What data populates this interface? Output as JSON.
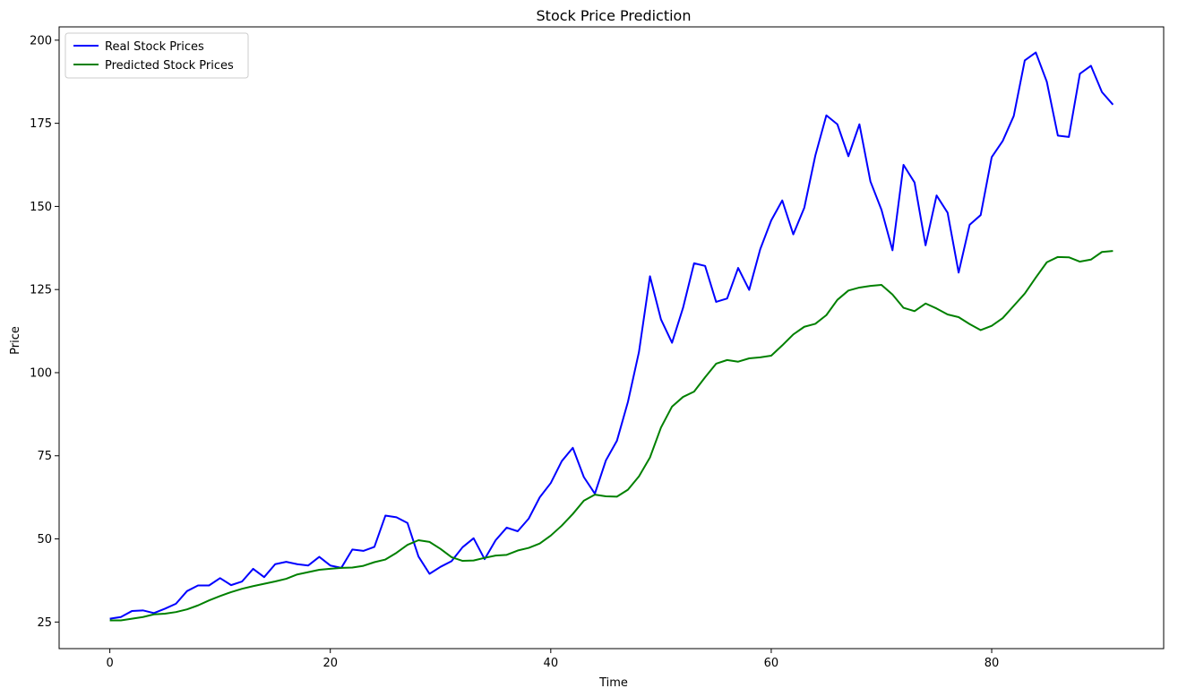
{
  "chart_data": {
    "type": "line",
    "title": "Stock Price Prediction",
    "xlabel": "Time",
    "ylabel": "Price",
    "xlim": [
      -4.6,
      95.6
    ],
    "ylim": [
      17,
      204
    ],
    "xticks": [
      0,
      20,
      40,
      60,
      80
    ],
    "yticks": [
      25,
      50,
      75,
      100,
      125,
      150,
      175,
      200
    ],
    "grid": false,
    "legend": "top-left",
    "series": [
      {
        "name": "Real Stock Prices",
        "color": "#0000ff",
        "values": [
          26.0,
          26.5,
          28.3,
          28.5,
          27.7,
          29.0,
          30.5,
          34.3,
          36.0,
          36.0,
          38.2,
          36.1,
          37.2,
          41.0,
          38.5,
          42.4,
          43.1,
          42.4,
          42.0,
          44.6,
          42.0,
          41.3,
          46.8,
          46.4,
          47.6,
          57.0,
          56.5,
          54.8,
          44.7,
          39.5,
          41.6,
          43.3,
          47.5,
          50.2,
          43.9,
          49.6,
          53.4,
          52.3,
          56.1,
          62.5,
          66.8,
          73.4,
          77.4,
          68.6,
          63.6,
          73.6,
          79.5,
          91.2,
          106.2,
          129.0,
          116.0,
          109.0,
          119.5,
          132.9,
          132.1,
          121.3,
          122.3,
          131.5,
          124.9,
          137.1,
          145.8,
          151.8,
          141.6,
          149.6,
          165.3,
          177.4,
          174.7,
          165.1,
          174.7,
          157.5,
          149.0,
          136.8,
          162.5,
          157.2,
          138.3,
          153.3,
          148.1,
          130.1,
          144.5,
          147.4,
          164.8,
          169.7,
          177.2,
          193.9,
          196.3,
          187.5,
          171.3,
          170.9,
          189.9,
          192.3,
          184.4,
          180.6
        ]
      },
      {
        "name": "Predicted Stock Prices",
        "color": "#008000",
        "values": [
          25.5,
          25.5,
          26.0,
          26.5,
          27.3,
          27.5,
          28.0,
          28.8,
          30.0,
          31.5,
          32.8,
          34.0,
          35.0,
          35.8,
          36.5,
          37.2,
          38.0,
          39.3,
          40.0,
          40.7,
          41.0,
          41.3,
          41.4,
          41.9,
          43.0,
          43.8,
          45.8,
          48.2,
          49.6,
          49.1,
          47.0,
          44.5,
          43.4,
          43.5,
          44.3,
          45.0,
          45.2,
          46.5,
          47.3,
          48.6,
          51.0,
          54.0,
          57.5,
          61.5,
          63.3,
          62.8,
          62.7,
          64.8,
          68.8,
          74.5,
          83.5,
          89.8,
          92.7,
          94.3,
          98.6,
          102.7,
          103.8,
          103.3,
          104.3,
          104.6,
          105.1,
          108.2,
          111.5,
          113.8,
          114.7,
          117.3,
          121.9,
          124.7,
          125.6,
          126.1,
          126.4,
          123.5,
          119.5,
          118.5,
          120.8,
          119.3,
          117.5,
          116.7,
          114.6,
          112.8,
          114.1,
          116.4,
          120.1,
          123.8,
          128.6,
          133.2,
          134.8,
          134.7,
          133.4,
          134.0,
          136.3,
          136.6
        ]
      }
    ]
  }
}
